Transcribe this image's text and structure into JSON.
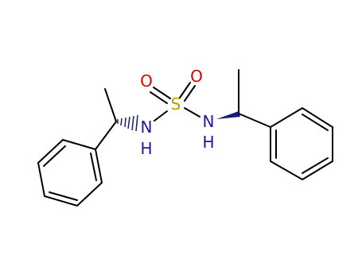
{
  "atoms": [
    "O",
    "O",
    "S",
    "N",
    "H",
    "N",
    "H"
  ]
}
